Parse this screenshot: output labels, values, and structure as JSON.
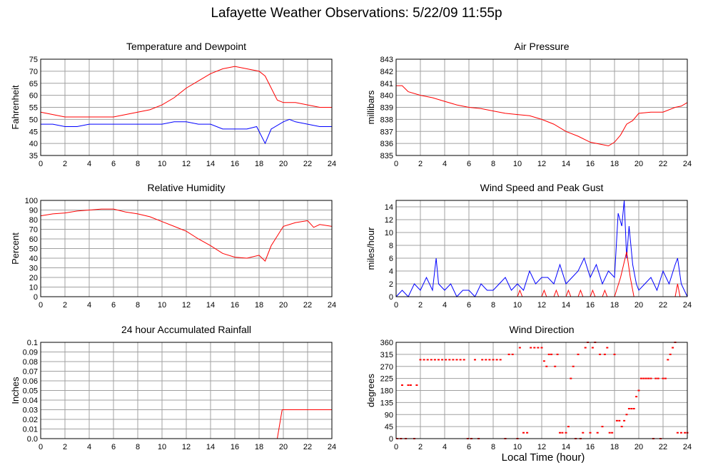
{
  "page": {
    "title": "Lafayette Weather Observations: 5/22/09 11:55p",
    "x_axis_title": "Local Time (hour)"
  },
  "colors": {
    "series_red": "#ff0000",
    "series_blue": "#0000ff",
    "grid": "#a0a0a0",
    "frame": "#000000"
  },
  "chart_data": [
    {
      "id": "temperature",
      "type": "line",
      "title": "Temperature and Dewpoint",
      "ylabel": "Fahrenheit",
      "xlim": [
        0,
        24
      ],
      "xticks": [
        0,
        2,
        4,
        6,
        8,
        10,
        12,
        14,
        16,
        18,
        20,
        22,
        24
      ],
      "ylim": [
        35,
        75
      ],
      "yticks": [
        35,
        40,
        45,
        50,
        55,
        60,
        65,
        70,
        75
      ],
      "grid": true,
      "series": [
        {
          "color": "#ff0000",
          "x": [
            0,
            1,
            2,
            3,
            4,
            5,
            6,
            7,
            8,
            9,
            10,
            11,
            12,
            13,
            14,
            15,
            16,
            17,
            18,
            18.5,
            19,
            19.5,
            20,
            21,
            22,
            23,
            24
          ],
          "y": [
            53,
            52,
            51,
            51,
            51,
            51,
            51,
            52,
            53,
            54,
            56,
            59,
            63,
            66,
            69,
            71,
            72,
            71,
            70,
            68,
            63,
            58,
            57,
            57,
            56,
            55,
            55
          ]
        },
        {
          "color": "#0000ff",
          "x": [
            0,
            1,
            2,
            3,
            4,
            5,
            6,
            7,
            8,
            9,
            10,
            11,
            12,
            13,
            14,
            15,
            16,
            17,
            17.8,
            18.3,
            18.5,
            19,
            20,
            20.5,
            21,
            22,
            23,
            24
          ],
          "y": [
            48,
            48,
            47,
            47,
            48,
            48,
            48,
            48,
            48,
            48,
            48,
            49,
            49,
            48,
            48,
            46,
            46,
            46,
            47,
            42,
            40,
            46,
            49,
            50,
            49,
            48,
            47,
            47
          ]
        }
      ]
    },
    {
      "id": "pressure",
      "type": "line",
      "title": "Air Pressure",
      "ylabel": "millibars",
      "xlim": [
        0,
        24
      ],
      "xticks": [
        0,
        2,
        4,
        6,
        8,
        10,
        12,
        14,
        16,
        18,
        20,
        22,
        24
      ],
      "ylim": [
        835,
        843
      ],
      "yticks": [
        835,
        836,
        837,
        838,
        839,
        840,
        841,
        842,
        843
      ],
      "grid": true,
      "series": [
        {
          "color": "#ff0000",
          "x": [
            0,
            0.5,
            1,
            2,
            3,
            4,
            5,
            6,
            7,
            8,
            9,
            10,
            11,
            12,
            13,
            14,
            15,
            16,
            17,
            17.5,
            18,
            18.5,
            19,
            19.5,
            20,
            21,
            22,
            23,
            23.5,
            24
          ],
          "y": [
            840.8,
            840.8,
            840.3,
            840.0,
            839.8,
            839.5,
            839.2,
            839.0,
            838.9,
            838.7,
            838.5,
            838.4,
            838.3,
            838.0,
            837.6,
            837.0,
            836.6,
            836.1,
            835.9,
            835.8,
            836.1,
            836.7,
            837.6,
            837.9,
            838.5,
            838.6,
            838.6,
            839.0,
            839.1,
            839.4
          ]
        }
      ]
    },
    {
      "id": "humidity",
      "type": "line",
      "title": "Relative Humidity",
      "ylabel": "Percent",
      "xlim": [
        0,
        24
      ],
      "xticks": [
        0,
        2,
        4,
        6,
        8,
        10,
        12,
        14,
        16,
        18,
        20,
        22,
        24
      ],
      "ylim": [
        0,
        100
      ],
      "yticks": [
        0,
        10,
        20,
        30,
        40,
        50,
        60,
        70,
        80,
        90,
        100
      ],
      "grid": true,
      "series": [
        {
          "color": "#ff0000",
          "x": [
            0,
            1,
            2,
            3,
            4,
            5,
            6,
            7,
            8,
            9,
            10,
            11,
            12,
            13,
            14,
            15,
            16,
            17,
            18,
            18.5,
            19,
            19.5,
            20,
            21,
            22,
            22.5,
            23,
            24
          ],
          "y": [
            84,
            86,
            87,
            89,
            90,
            91,
            91,
            88,
            86,
            83,
            78,
            73,
            68,
            60,
            53,
            45,
            41,
            40,
            43,
            37,
            53,
            63,
            73,
            77,
            79,
            72,
            75,
            73
          ]
        }
      ]
    },
    {
      "id": "wind_speed",
      "type": "line",
      "title": "Wind Speed and Peak Gust",
      "ylabel": "miles/hour",
      "xlim": [
        0,
        24
      ],
      "xticks": [
        0,
        2,
        4,
        6,
        8,
        10,
        12,
        14,
        16,
        18,
        20,
        22,
        24
      ],
      "ylim": [
        0,
        15
      ],
      "yticks": [
        0,
        2,
        4,
        6,
        8,
        10,
        12,
        14
      ],
      "grid": true,
      "series": [
        {
          "color": "#0000ff",
          "x": [
            0,
            0.5,
            1,
            1.5,
            2,
            2.5,
            3,
            3.3,
            3.5,
            4,
            4.5,
            5,
            5.5,
            6,
            6.5,
            7,
            7.5,
            8,
            8.5,
            9,
            9.5,
            10,
            10.5,
            11,
            11.5,
            12,
            12.5,
            13,
            13.5,
            14,
            14.5,
            15,
            15.5,
            16,
            16.5,
            17,
            17.5,
            18,
            18.3,
            18.6,
            18.8,
            19,
            19.2,
            19.5,
            19.8,
            20,
            20.5,
            21,
            21.5,
            22,
            22.5,
            23,
            23.2,
            23.5,
            24
          ],
          "y": [
            0,
            1,
            0,
            2,
            1,
            3,
            1,
            6,
            2,
            1,
            2,
            0,
            1,
            1,
            0,
            2,
            1,
            1,
            2,
            3,
            1,
            2,
            1,
            4,
            2,
            3,
            3,
            2,
            5,
            2,
            3,
            4,
            6,
            3,
            5,
            2,
            4,
            3,
            13,
            11,
            15,
            6,
            11,
            5,
            2,
            1,
            2,
            3,
            1,
            4,
            2,
            5,
            6,
            2,
            0
          ]
        },
        {
          "color": "#ff0000",
          "x": [
            0,
            10,
            10.2,
            10.4,
            11,
            12,
            12.2,
            12.4,
            13,
            13.2,
            13.4,
            14,
            14.2,
            14.4,
            15,
            15.2,
            15.4,
            16,
            16.2,
            16.4,
            17,
            17.2,
            17.4,
            18,
            18.5,
            19,
            19.3,
            19.6,
            20,
            23,
            23.2,
            23.4,
            24
          ],
          "y": [
            0,
            0,
            1,
            0,
            0,
            0,
            1,
            0,
            0,
            1,
            0,
            0,
            1,
            0,
            0,
            1,
            0,
            0,
            1,
            0,
            0,
            1,
            0,
            0,
            3,
            7,
            3,
            0,
            0,
            0,
            2,
            0,
            0
          ]
        }
      ]
    },
    {
      "id": "rainfall",
      "type": "line",
      "title": "24 hour Accumulated Rainfall",
      "ylabel": "Inches",
      "xlim": [
        0,
        24
      ],
      "xticks": [
        0,
        2,
        4,
        6,
        8,
        10,
        12,
        14,
        16,
        18,
        20,
        22,
        24
      ],
      "ylim": [
        0,
        0.1
      ],
      "yticks": [
        "0.0",
        "0.01",
        "0.02",
        "0.03",
        "0.04",
        "0.05",
        "0.06",
        "0.07",
        "0.08",
        "0.09",
        "0.1"
      ],
      "grid": true,
      "series": [
        {
          "color": "#ff0000",
          "x": [
            0,
            19.5,
            19.9,
            24
          ],
          "y": [
            0,
            0,
            0.03,
            0.03
          ]
        }
      ]
    },
    {
      "id": "wind_direction",
      "type": "scatter",
      "title": "Wind Direction",
      "ylabel": "degrees",
      "xlim": [
        0,
        24
      ],
      "xticks": [
        0,
        2,
        4,
        6,
        8,
        10,
        12,
        14,
        16,
        18,
        20,
        22,
        24
      ],
      "ylim": [
        0,
        360
      ],
      "yticks": [
        0,
        45,
        90,
        135,
        180,
        225,
        270,
        315,
        360
      ],
      "grid": true,
      "series": [
        {
          "color": "#ff0000",
          "points": [
            [
              0.1,
              0
            ],
            [
              0.4,
              0
            ],
            [
              0.5,
              200
            ],
            [
              0.8,
              0
            ],
            [
              1.0,
              200
            ],
            [
              1.2,
              200
            ],
            [
              1.5,
              0
            ],
            [
              1.7,
              200
            ],
            [
              2.0,
              295
            ],
            [
              2.3,
              295
            ],
            [
              2.6,
              295
            ],
            [
              2.9,
              295
            ],
            [
              3.2,
              295
            ],
            [
              3.5,
              295
            ],
            [
              3.8,
              295
            ],
            [
              4.1,
              295
            ],
            [
              4.4,
              295
            ],
            [
              4.7,
              295
            ],
            [
              5.0,
              295
            ],
            [
              5.3,
              295
            ],
            [
              5.6,
              295
            ],
            [
              5.9,
              0
            ],
            [
              6.2,
              0
            ],
            [
              6.5,
              295
            ],
            [
              6.8,
              0
            ],
            [
              7.1,
              295
            ],
            [
              7.4,
              295
            ],
            [
              7.7,
              295
            ],
            [
              8.0,
              295
            ],
            [
              8.3,
              295
            ],
            [
              8.6,
              295
            ],
            [
              9.0,
              0
            ],
            [
              9.3,
              315
            ],
            [
              9.6,
              315
            ],
            [
              10.0,
              0
            ],
            [
              10.2,
              340
            ],
            [
              10.5,
              22
            ],
            [
              10.8,
              22
            ],
            [
              11.1,
              340
            ],
            [
              11.4,
              340
            ],
            [
              11.7,
              340
            ],
            [
              12.0,
              340
            ],
            [
              12.2,
              290
            ],
            [
              12.4,
              270
            ],
            [
              12.6,
              315
            ],
            [
              12.8,
              315
            ],
            [
              13.1,
              270
            ],
            [
              13.3,
              315
            ],
            [
              13.5,
              22
            ],
            [
              13.7,
              22
            ],
            [
              14.0,
              22
            ],
            [
              14.2,
              45
            ],
            [
              14.4,
              225
            ],
            [
              14.6,
              270
            ],
            [
              14.8,
              0
            ],
            [
              15.0,
              315
            ],
            [
              15.2,
              0
            ],
            [
              15.4,
              22
            ],
            [
              15.6,
              340
            ],
            [
              15.8,
              360
            ],
            [
              16.0,
              22
            ],
            [
              16.2,
              340
            ],
            [
              16.4,
              360
            ],
            [
              16.6,
              22
            ],
            [
              16.8,
              315
            ],
            [
              17.0,
              45
            ],
            [
              17.2,
              315
            ],
            [
              17.4,
              340
            ],
            [
              17.6,
              22
            ],
            [
              17.8,
              22
            ],
            [
              18.0,
              315
            ],
            [
              18.2,
              67
            ],
            [
              18.4,
              67
            ],
            [
              18.6,
              45
            ],
            [
              18.8,
              67
            ],
            [
              19.0,
              90
            ],
            [
              19.2,
              112
            ],
            [
              19.4,
              112
            ],
            [
              19.6,
              112
            ],
            [
              19.8,
              157
            ],
            [
              20.0,
              180
            ],
            [
              20.2,
              225
            ],
            [
              20.4,
              225
            ],
            [
              20.6,
              225
            ],
            [
              20.8,
              225
            ],
            [
              21.0,
              225
            ],
            [
              21.2,
              0
            ],
            [
              21.4,
              225
            ],
            [
              21.6,
              225
            ],
            [
              21.8,
              0
            ],
            [
              22.0,
              225
            ],
            [
              22.2,
              225
            ],
            [
              22.4,
              295
            ],
            [
              22.6,
              315
            ],
            [
              22.8,
              340
            ],
            [
              23.0,
              360
            ],
            [
              23.2,
              22
            ],
            [
              23.5,
              22
            ],
            [
              23.8,
              22
            ],
            [
              24.0,
              22
            ]
          ]
        }
      ]
    }
  ]
}
